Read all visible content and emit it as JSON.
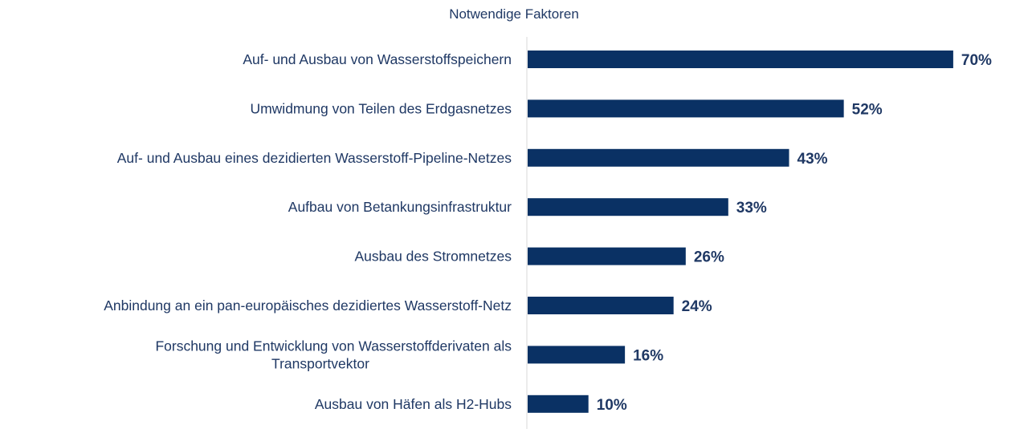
{
  "chart_data": {
    "type": "bar",
    "orientation": "horizontal",
    "title": "Notwendige Faktoren",
    "categories": [
      "Auf- und Ausbau von Wasserstoffspeichern",
      "Umwidmung von Teilen des Erdgasnetzes",
      "Auf- und Ausbau eines dezidierten Wasserstoff-Pipeline-Netzes",
      "Aufbau von Betankungsinfrastruktur",
      "Ausbau des Stromnetzes",
      "Anbindung an ein pan-europäisches dezidiertes Wasserstoff-Netz",
      "Forschung und Entwicklung von Wasserstoffderivaten als Transportvektor",
      "Ausbau von Häfen als H2-Hubs"
    ],
    "category_lines": [
      [
        "Auf- und Ausbau von Wasserstoffspeichern"
      ],
      [
        "Umwidmung von Teilen des Erdgasnetzes"
      ],
      [
        "Auf- und Ausbau eines dezidierten Wasserstoff-Pipeline-Netzes"
      ],
      [
        "Aufbau von Betankungsinfrastruktur"
      ],
      [
        "Ausbau des Stromnetzes"
      ],
      [
        "Anbindung an ein pan-europäisches dezidiertes Wasserstoff-Netz"
      ],
      [
        "Forschung und Entwicklung von Wasserstoffderivaten als",
        "Transportvektor"
      ],
      [
        "Ausbau von Häfen als H2-Hubs"
      ]
    ],
    "values": [
      70,
      52,
      43,
      33,
      26,
      24,
      16,
      10
    ],
    "value_labels": [
      "70%",
      "52%",
      "43%",
      "33%",
      "26%",
      "24%",
      "16%",
      "10%"
    ],
    "unit": "%",
    "xlim": [
      0,
      100
    ],
    "grid": false,
    "colors": {
      "bar": "#0a3164",
      "text": "#1f3864",
      "axis": "#d9d9d9"
    }
  }
}
